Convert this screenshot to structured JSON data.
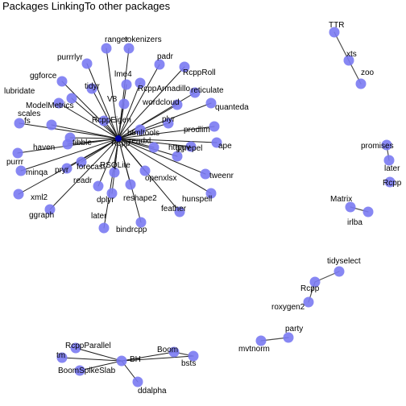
{
  "title": "Packages LinkingTo other packages",
  "colors": {
    "node": "#7a7af2",
    "edge": "#4d4d4d",
    "hub_edge": "#1c1c1c",
    "label": "#000000"
  },
  "nodes": [
    {
      "id": "Rcpp_main",
      "label": "Rcpp"
    },
    {
      "id": "ranger",
      "label": "ranger"
    },
    {
      "id": "tokenizers",
      "label": "tokenizers"
    },
    {
      "id": "purrrlyr",
      "label": "purrrlyr"
    },
    {
      "id": "padr",
      "label": "padr"
    },
    {
      "id": "RcppRoll",
      "label": "RcppRoll"
    },
    {
      "id": "ggforce",
      "label": "ggforce"
    },
    {
      "id": "lme4",
      "label": "lme4"
    },
    {
      "id": "RcppArmadillo",
      "label": "RcppArmadillo"
    },
    {
      "id": "lubridate",
      "label": "lubridate"
    },
    {
      "id": "tidyr",
      "label": "tidyr"
    },
    {
      "id": "reticulate",
      "label": "reticulate"
    },
    {
      "id": "V8",
      "label": "V8"
    },
    {
      "id": "wordcloud",
      "label": "wordcloud"
    },
    {
      "id": "ModelMetrics",
      "label": "ModelMetrics"
    },
    {
      "id": "quanteda",
      "label": "quanteda"
    },
    {
      "id": "fs",
      "label": "fs"
    },
    {
      "id": "scales",
      "label": "scales"
    },
    {
      "id": "RcppEigen",
      "label": "RcppEigen"
    },
    {
      "id": "plyr",
      "label": "plyr"
    },
    {
      "id": "htmltools",
      "label": "htmltools"
    },
    {
      "id": "prodlim",
      "label": "prodlim"
    },
    {
      "id": "haven",
      "label": "haven"
    },
    {
      "id": "tibble",
      "label": "tibble"
    },
    {
      "id": "httpuv",
      "label": "httpuv"
    },
    {
      "id": "ape",
      "label": "ape"
    },
    {
      "id": "readxl",
      "label": "readxl"
    },
    {
      "id": "purrr",
      "label": "purrr"
    },
    {
      "id": "ggrepel",
      "label": "ggrepel"
    },
    {
      "id": "pryr",
      "label": "pryr"
    },
    {
      "id": "forecast",
      "label": "forecast"
    },
    {
      "id": "minqa",
      "label": "minqa"
    },
    {
      "id": "tweenr",
      "label": "tweenr"
    },
    {
      "id": "RSQLite",
      "label": "RSQLite"
    },
    {
      "id": "openxlsx",
      "label": "openxlsx"
    },
    {
      "id": "xml2",
      "label": "xml2"
    },
    {
      "id": "readr",
      "label": "readr"
    },
    {
      "id": "hunspell",
      "label": "hunspell"
    },
    {
      "id": "dplyr",
      "label": "dplyr"
    },
    {
      "id": "reshape2",
      "label": "reshape2"
    },
    {
      "id": "ggraph",
      "label": "ggraph"
    },
    {
      "id": "feather",
      "label": "feather"
    },
    {
      "id": "later_main",
      "label": "later"
    },
    {
      "id": "bindrcpp",
      "label": "bindrcpp"
    },
    {
      "id": "TTR",
      "label": "TTR"
    },
    {
      "id": "xts",
      "label": "xts"
    },
    {
      "id": "zoo",
      "label": "zoo"
    },
    {
      "id": "promises",
      "label": "promises"
    },
    {
      "id": "later_b",
      "label": "later"
    },
    {
      "id": "Rcpp_b",
      "label": "Rcpp"
    },
    {
      "id": "Matrix",
      "label": "Matrix"
    },
    {
      "id": "irlba",
      "label": "irlba"
    },
    {
      "id": "tidyselect",
      "label": "tidyselect"
    },
    {
      "id": "Rcpp_c",
      "label": "Rcpp"
    },
    {
      "id": "roxygen2",
      "label": "roxygen2"
    },
    {
      "id": "party",
      "label": "party"
    },
    {
      "id": "mvtnorm",
      "label": "mvtnorm"
    },
    {
      "id": "RcppParallel",
      "label": "RcppParallel"
    },
    {
      "id": "tm",
      "label": "tm"
    },
    {
      "id": "BH",
      "label": "BH"
    },
    {
      "id": "Boom",
      "label": "Boom"
    },
    {
      "id": "bsts",
      "label": "bsts"
    },
    {
      "id": "BoomSpikeSlab",
      "label": "BoomSpikeSlab"
    },
    {
      "id": "ddalpha",
      "label": "ddalpha"
    }
  ],
  "edges": [
    [
      "Rcpp_main",
      "ranger"
    ],
    [
      "Rcpp_main",
      "tokenizers"
    ],
    [
      "Rcpp_main",
      "purrrlyr"
    ],
    [
      "Rcpp_main",
      "padr"
    ],
    [
      "Rcpp_main",
      "RcppRoll"
    ],
    [
      "Rcpp_main",
      "ggforce"
    ],
    [
      "Rcpp_main",
      "lme4"
    ],
    [
      "Rcpp_main",
      "RcppArmadillo"
    ],
    [
      "Rcpp_main",
      "lubridate"
    ],
    [
      "Rcpp_main",
      "tidyr"
    ],
    [
      "Rcpp_main",
      "reticulate"
    ],
    [
      "Rcpp_main",
      "V8"
    ],
    [
      "Rcpp_main",
      "wordcloud"
    ],
    [
      "Rcpp_main",
      "ModelMetrics"
    ],
    [
      "Rcpp_main",
      "quanteda"
    ],
    [
      "Rcpp_main",
      "fs"
    ],
    [
      "Rcpp_main",
      "scales"
    ],
    [
      "Rcpp_main",
      "RcppEigen"
    ],
    [
      "Rcpp_main",
      "plyr"
    ],
    [
      "Rcpp_main",
      "htmltools"
    ],
    [
      "Rcpp_main",
      "prodlim"
    ],
    [
      "Rcpp_main",
      "haven"
    ],
    [
      "Rcpp_main",
      "tibble"
    ],
    [
      "Rcpp_main",
      "httpuv"
    ],
    [
      "Rcpp_main",
      "ape"
    ],
    [
      "Rcpp_main",
      "readxl"
    ],
    [
      "Rcpp_main",
      "purrr"
    ],
    [
      "Rcpp_main",
      "ggrepel"
    ],
    [
      "Rcpp_main",
      "pryr"
    ],
    [
      "Rcpp_main",
      "forecast"
    ],
    [
      "Rcpp_main",
      "minqa"
    ],
    [
      "Rcpp_main",
      "tweenr"
    ],
    [
      "Rcpp_main",
      "RSQLite"
    ],
    [
      "Rcpp_main",
      "openxlsx"
    ],
    [
      "Rcpp_main",
      "xml2"
    ],
    [
      "Rcpp_main",
      "readr"
    ],
    [
      "Rcpp_main",
      "hunspell"
    ],
    [
      "Rcpp_main",
      "dplyr"
    ],
    [
      "Rcpp_main",
      "reshape2"
    ],
    [
      "Rcpp_main",
      "ggraph"
    ],
    [
      "Rcpp_main",
      "feather"
    ],
    [
      "Rcpp_main",
      "later_main"
    ],
    [
      "Rcpp_main",
      "bindrcpp"
    ],
    [
      "TTR",
      "xts"
    ],
    [
      "xts",
      "zoo"
    ],
    [
      "promises",
      "later_b"
    ],
    [
      "Matrix",
      "irlba"
    ],
    [
      "tidyselect",
      "Rcpp_c"
    ],
    [
      "Rcpp_c",
      "roxygen2"
    ],
    [
      "party",
      "mvtnorm"
    ],
    [
      "BH",
      "RcppParallel"
    ],
    [
      "BH",
      "tm"
    ],
    [
      "BH",
      "Boom"
    ],
    [
      "BH",
      "bsts"
    ],
    [
      "Boom",
      "bsts"
    ],
    [
      "BH",
      "BoomSpikeSlab"
    ],
    [
      "BH",
      "ddalpha"
    ]
  ]
}
